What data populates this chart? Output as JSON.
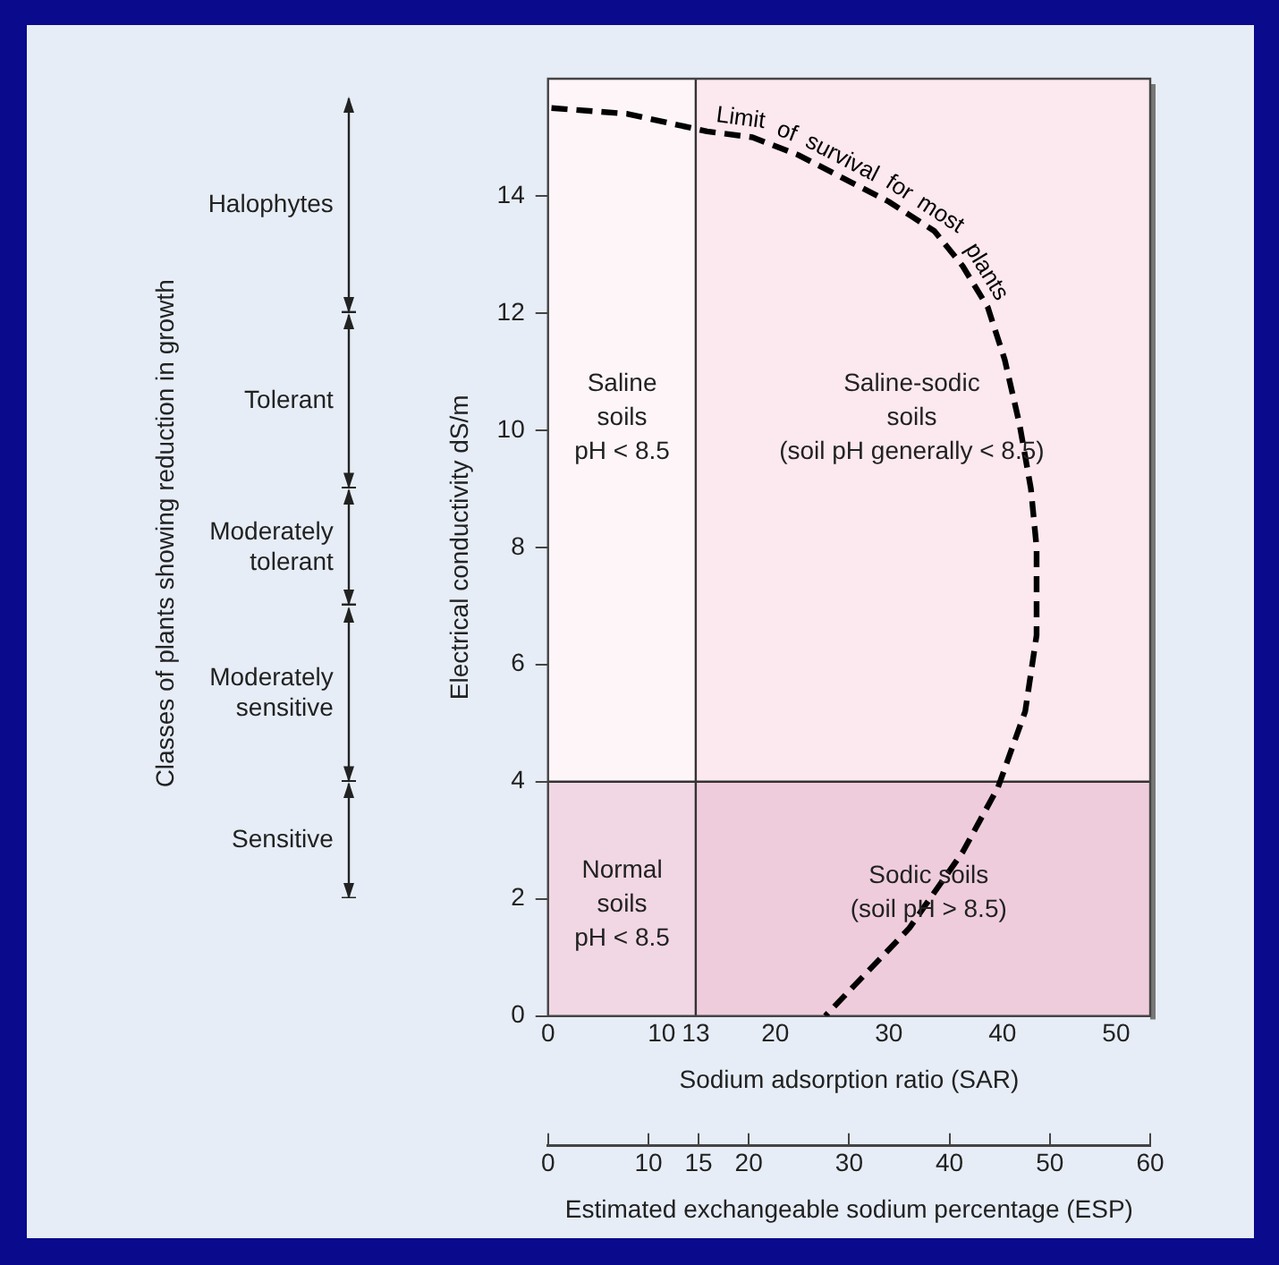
{
  "chart_data": {
    "type": "line",
    "xlabel": "Sodium adsorption ratio (SAR)",
    "ylabel": "Electrical conductivity dS/m",
    "x2label": "Estimated exchangeable sodium percentage (ESP)",
    "xlim": [
      0,
      53
    ],
    "xticks": [
      0,
      10,
      13,
      20,
      30,
      40,
      50
    ],
    "ylim": [
      0,
      16
    ],
    "yticks": [
      0,
      2,
      4,
      6,
      8,
      10,
      12,
      14
    ],
    "x2lim": [
      0,
      60
    ],
    "x2ticks": [
      0,
      10,
      15,
      20,
      30,
      40,
      50,
      60
    ],
    "marker": "none",
    "line_style": "dashed",
    "series": [
      {
        "name": "Limit of survival for most plants",
        "color": "#000000",
        "x": [
          0.3,
          7,
          14,
          18,
          22,
          26,
          30,
          34,
          36.5,
          38.7,
          40.2,
          41.5,
          42.5,
          43,
          43,
          42,
          39.6,
          36.5,
          31.8,
          24.4
        ],
        "values": [
          15.5,
          15.4,
          15.1,
          15.0,
          14.7,
          14.3,
          13.9,
          13.4,
          12.8,
          12.1,
          11.2,
          10.1,
          9,
          8,
          6.5,
          5.2,
          3.9,
          2.8,
          1.5,
          0
        ]
      }
    ],
    "bands": [
      {
        "axis": "x",
        "from": 0,
        "to": 13,
        "color": "#ffffff"
      },
      {
        "axis": "y",
        "from": 0,
        "to": 4,
        "color": "#c06090"
      }
    ],
    "ref_lines": [
      {
        "axis": "x",
        "value": 13,
        "color": "#333333"
      },
      {
        "axis": "y",
        "value": 4,
        "color": "#333333"
      }
    ],
    "annotations": [
      "Classes of plants showing reduction in growth",
      "Saline\nsoils\npH < 8.5",
      "Saline-sodic\nsoils\n(soil pH generally < 8.5)",
      "Normal\nsoils\npH < 8.5",
      "Sodic soils\n(soil pH > 8.5)",
      "Halophytes",
      "Tolerant",
      "Moderately tolerant",
      "Moderately sensitive",
      "Sensitive"
    ]
  }
}
